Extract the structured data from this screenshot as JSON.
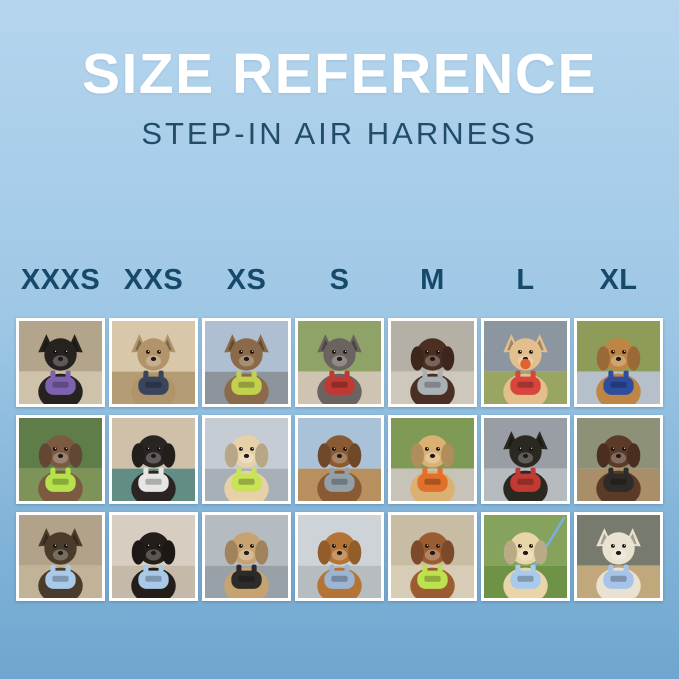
{
  "header": {
    "title": "SIZE REFERENCE",
    "subtitle": "STEP-IN AIR HARNESS"
  },
  "colors": {
    "bg_top": "#b5d5ed",
    "bg_mid": "#9fc8e6",
    "bg_bottom": "#6fa6cf",
    "title": "#ffffff",
    "subtitle": "#224d68",
    "label": "#17496a",
    "tile_border": "#ffffff"
  },
  "sizes": [
    "XXXS",
    "XXS",
    "XS",
    "S",
    "M",
    "L",
    "XL"
  ],
  "grid": {
    "rows": 3,
    "cols": 7
  },
  "photos": [
    {
      "size": "XXXS",
      "row": 1,
      "pet": "cat",
      "ear": "pointy",
      "desc": "Black kitten wearing a purple harness indoors",
      "fur": "#262220",
      "harness": "#7e62ae",
      "scene_top": "#b3a48c",
      "scene_bottom": "#cfc2ab"
    },
    {
      "size": "XXS",
      "row": 1,
      "pet": "cat",
      "ear": "pointy",
      "desc": "Bengal cat wearing a navy harness by a window",
      "fur": "#b2946a",
      "harness": "#39455c",
      "scene_top": "#d8c7a8",
      "scene_bottom": "#b49c75"
    },
    {
      "size": "XS",
      "row": 1,
      "pet": "cat",
      "ear": "pointy",
      "desc": "Tabby cat wearing a yellow-green harness in a car",
      "fur": "#8a6a48",
      "harness": "#c3d14f",
      "scene_top": "#aebfd2",
      "scene_bottom": "#8e949b"
    },
    {
      "size": "S",
      "row": 1,
      "pet": "dog",
      "ear": "pointy",
      "desc": "Grey French bulldog wearing a red harness outdoors",
      "fur": "#6a6360",
      "harness": "#c03a33",
      "scene_top": "#8fa368",
      "scene_bottom": "#cec4b1"
    },
    {
      "size": "M",
      "row": 1,
      "pet": "dog",
      "ear": "floppy",
      "desc": "Chocolate spaniel wearing a grey harness on pavement",
      "fur": "#4c2f23",
      "harness": "#aab1b5",
      "scene_top": "#b5b0a6",
      "scene_bottom": "#cdc7bc"
    },
    {
      "size": "L",
      "row": 1,
      "pet": "dog",
      "ear": "pointy",
      "desc": "Shiba inu holding an orange ball, red harness, on a field",
      "fur": "#e2bf8c",
      "harness": "#d8453c",
      "scene_top": "#8c96a0",
      "scene_bottom": "#99a562",
      "accent": "#e2622f"
    },
    {
      "size": "XL",
      "row": 1,
      "pet": "dog",
      "ear": "floppy",
      "desc": "Golden retriever wearing a navy harness on a flower-lined path",
      "fur": "#bf8545",
      "harness": "#2e4da0",
      "scene_top": "#8d9c58",
      "scene_bottom": "#b6c0ca"
    },
    {
      "size": "XXXS",
      "row": 2,
      "pet": "dog",
      "ear": "floppy",
      "desc": "Scruffy dapple dog wearing a lime green harness in a garden",
      "fur": "#7b5a41",
      "harness": "#b5e24c",
      "scene_top": "#5e7d48",
      "scene_bottom": "#7d9357"
    },
    {
      "size": "XXS",
      "row": 2,
      "pet": "dog",
      "ear": "floppy",
      "desc": "Black puppy wearing a white harness on a chair with teal blanket",
      "fur": "#2a2523",
      "harness": "#e8e6e2",
      "scene_top": "#cfc1a9",
      "scene_bottom": "#628d85"
    },
    {
      "size": "XS",
      "row": 2,
      "pet": "dog",
      "ear": "floppy",
      "desc": "Cream long-haired dachshund wearing a lime harness",
      "fur": "#e6d1a8",
      "harness": "#c8e356",
      "scene_top": "#c5ccd3",
      "scene_bottom": "#a7afb7"
    },
    {
      "size": "S",
      "row": 2,
      "pet": "dog",
      "ear": "floppy",
      "desc": "Long-haired dachshund sitting on a sunny dock",
      "fur": "#8a5a33",
      "harness": "#93a0aa",
      "scene_top": "#a9c2d7",
      "scene_bottom": "#b8905f"
    },
    {
      "size": "M",
      "row": 2,
      "pet": "dog",
      "ear": "floppy",
      "desc": "Golden puppy wearing an orange harness on a patio",
      "fur": "#dbb173",
      "harness": "#e1702b",
      "scene_top": "#7e9a54",
      "scene_bottom": "#c8c3b9"
    },
    {
      "size": "L",
      "row": 2,
      "pet": "dog",
      "ear": "pointy",
      "desc": "Black-and-tan dog wearing a red harness inside a metal tunnel",
      "fur": "#2b2721",
      "harness": "#c23a34",
      "scene_top": "#989ea4",
      "scene_bottom": "#b6bbc0"
    },
    {
      "size": "XL",
      "row": 2,
      "pet": "dog",
      "ear": "floppy",
      "desc": "Brown-and-white dog wearing a black harness on a wooden deck",
      "fur": "#5c3a28",
      "harness": "#2e2b29",
      "scene_top": "#8c9178",
      "scene_bottom": "#a88e69"
    },
    {
      "size": "XXXS",
      "row": 3,
      "pet": "dog",
      "ear": "pointy",
      "desc": "Yorkie puppy wearing a light blue harness on a sunny path",
      "fur": "#4a3b2b",
      "harness": "#a9cae9",
      "scene_top": "#b1a289",
      "scene_bottom": "#c2b398"
    },
    {
      "size": "XXS",
      "row": 3,
      "pet": "dog",
      "ear": "floppy",
      "desc": "Dachshund puppy wearing a light blue harness on a sofa",
      "fur": "#241e1b",
      "harness": "#a9c9e8",
      "scene_top": "#d7cec1",
      "scene_bottom": "#c5baa9"
    },
    {
      "size": "XS",
      "row": 3,
      "pet": "dog",
      "ear": "floppy",
      "desc": "Apricot poodle puppy wearing a black harness on a deck",
      "fur": "#c8a372",
      "harness": "#2d2b2a",
      "scene_top": "#b4bbc1",
      "scene_bottom": "#99a1a8"
    },
    {
      "size": "S",
      "row": 3,
      "pet": "dog",
      "ear": "floppy",
      "desc": "Red dachshund wearing a grey-blue harness",
      "fur": "#b47436",
      "harness": "#9cb5d3",
      "scene_top": "#ced3d7",
      "scene_bottom": "#b7bcc1"
    },
    {
      "size": "M",
      "row": 3,
      "pet": "dog",
      "ear": "floppy",
      "desc": "Red doodle wearing a lime green harness on stone steps",
      "fur": "#9b5c32",
      "harness": "#bee14f",
      "scene_top": "#c8bca5",
      "scene_bottom": "#d7ccb6"
    },
    {
      "size": "L",
      "row": 3,
      "pet": "dog",
      "ear": "floppy",
      "desc": "Golden puppy wearing a light blue harness on grass with a leash",
      "fur": "#e8d5a8",
      "harness": "#aacaed",
      "scene_top": "#85a35d",
      "scene_bottom": "#6e9347",
      "leash": "#79aee2"
    },
    {
      "size": "XL",
      "row": 3,
      "pet": "dog",
      "ear": "pointy",
      "desc": "White shepherd wearing a light blue harness on an evening street",
      "fur": "#e9e2d1",
      "harness": "#a8c3e8",
      "scene_top": "#767b6e",
      "scene_bottom": "#c0a87c"
    }
  ]
}
